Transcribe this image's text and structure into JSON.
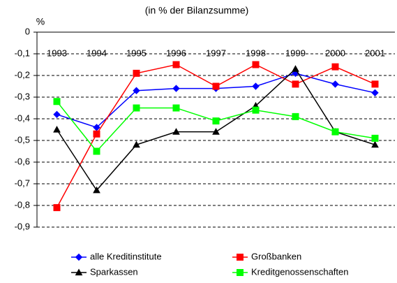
{
  "chart_data": {
    "type": "line",
    "subtitle": "(in % der Bilanzsumme)",
    "y_label": "%",
    "categories": [
      "1993",
      "1994",
      "1995",
      "1996",
      "1997",
      "1998",
      "1999",
      "2000",
      "2001"
    ],
    "series": [
      {
        "name": "alle Kreditinstitute",
        "color": "#0000ff",
        "marker": "diamond",
        "values": [
          -0.38,
          -0.44,
          -0.27,
          -0.26,
          -0.26,
          -0.25,
          -0.19,
          -0.24,
          -0.28
        ]
      },
      {
        "name": "Großbanken",
        "color": "#ff0000",
        "marker": "square",
        "values": [
          -0.81,
          -0.47,
          -0.19,
          -0.15,
          -0.25,
          -0.15,
          -0.24,
          -0.16,
          -0.24
        ]
      },
      {
        "name": "Sparkassen",
        "color": "#000000",
        "marker": "triangle",
        "values": [
          -0.45,
          -0.73,
          -0.52,
          -0.46,
          -0.46,
          -0.34,
          -0.17,
          -0.46,
          -0.52
        ]
      },
      {
        "name": "Kreditgenossenschaften",
        "color": "#00ff00",
        "marker": "square",
        "values": [
          -0.32,
          -0.55,
          -0.35,
          -0.35,
          -0.41,
          -0.36,
          -0.39,
          -0.46,
          -0.49
        ]
      }
    ],
    "ylim": [
      -0.9,
      0
    ],
    "yticks": [
      {
        "value": 0,
        "label": "0"
      },
      {
        "value": -0.1,
        "label": "-0,1"
      },
      {
        "value": -0.2,
        "label": "-0,2"
      },
      {
        "value": -0.3,
        "label": "-0,3"
      },
      {
        "value": -0.4,
        "label": "-0,4"
      },
      {
        "value": -0.5,
        "label": "-0,5"
      },
      {
        "value": -0.6,
        "label": "-0,6"
      },
      {
        "value": -0.7,
        "label": "-0,7"
      },
      {
        "value": -0.8,
        "label": "-0,8"
      },
      {
        "value": -0.9,
        "label": "-0,9"
      }
    ],
    "grid": true,
    "legend": "bottom"
  }
}
